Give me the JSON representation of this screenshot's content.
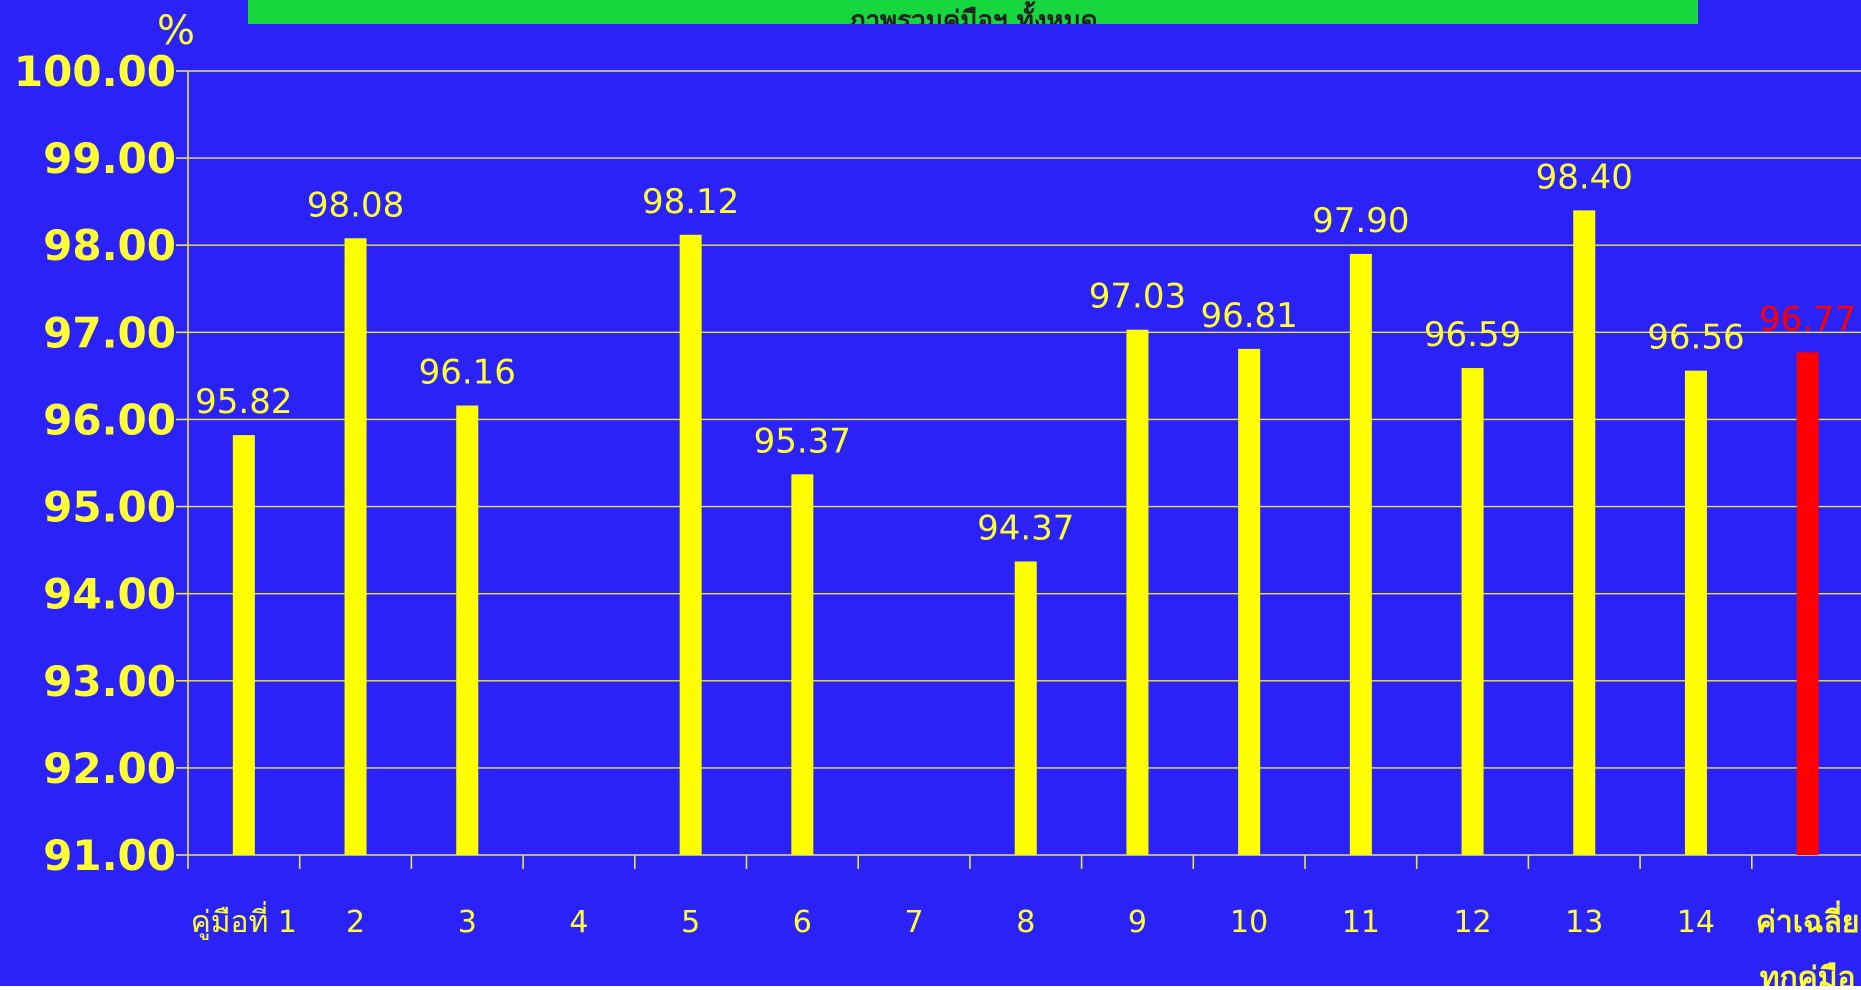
{
  "colors": {
    "background": "#2b22f7",
    "bar": "#ffff00",
    "average_bar": "#ff0000",
    "average_label": "#ff0000",
    "text": "#ffff33",
    "gridline": "#e6e64d",
    "banner": "#16d83e"
  },
  "chart_data": {
    "type": "bar",
    "title": "ภาพรวมคู่มือฯ ทั้งหมด",
    "ylabel": "%",
    "xlabel": "",
    "ylim": [
      91,
      100
    ],
    "yticks": [
      "91.00",
      "92.00",
      "93.00",
      "94.00",
      "95.00",
      "96.00",
      "97.00",
      "98.00",
      "99.00",
      "100.00"
    ],
    "grid": true,
    "legend": "none",
    "categories": [
      "คู่มือที่ 1",
      "2",
      "3",
      "4",
      "5",
      "6",
      "7",
      "8",
      "9",
      "10",
      "11",
      "12",
      "13",
      "14",
      "ค่าเฉลี่ย ทุกคู่มือ"
    ],
    "category_lines": [
      [
        "คู่มือที่ 1"
      ],
      [
        "2"
      ],
      [
        "3"
      ],
      [
        "4"
      ],
      [
        "5"
      ],
      [
        "6"
      ],
      [
        "7"
      ],
      [
        "8"
      ],
      [
        "9"
      ],
      [
        "10"
      ],
      [
        "11"
      ],
      [
        "12"
      ],
      [
        "13"
      ],
      [
        "14"
      ],
      [
        "ค่าเฉลี่ย",
        "ทุกคู่มือ"
      ]
    ],
    "values": [
      95.82,
      98.08,
      96.16,
      null,
      98.12,
      95.37,
      null,
      94.37,
      97.03,
      96.81,
      97.9,
      96.59,
      98.4,
      96.56,
      96.77
    ],
    "data_labels": [
      "95.82",
      "98.08",
      "96.16",
      "",
      "98.12",
      "95.37",
      "",
      "94.37",
      "97.03",
      "96.81",
      "97.90",
      "96.59",
      "98.40",
      "96.56",
      "96.77"
    ],
    "highlight_index": 14
  }
}
